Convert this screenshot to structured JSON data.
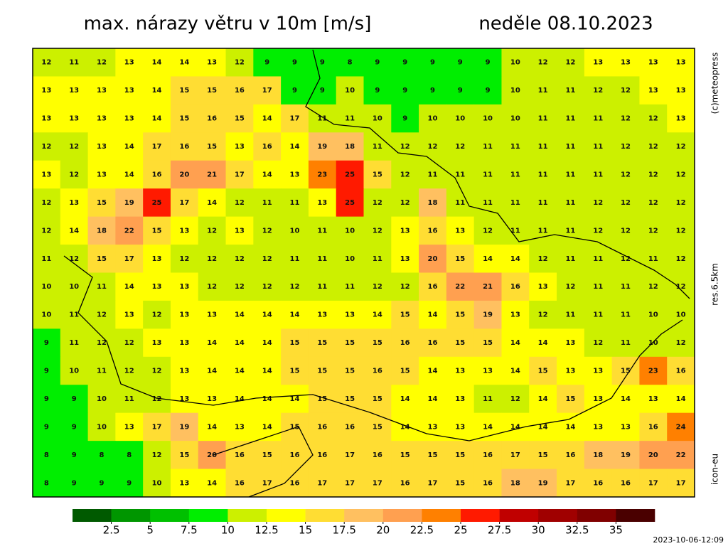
{
  "header": {
    "title": "max. nárazy větru v 10m [m/s]",
    "date": "neděle 08.10.2023"
  },
  "side_labels": [
    "(c)meteopress",
    "res.6.5km",
    "icon-eu"
  ],
  "timestamp": "2023-10-06-12:09",
  "map": {
    "values": [
      [
        12,
        11,
        12,
        13,
        14,
        14,
        13,
        12,
        9,
        9,
        9,
        8,
        9,
        9,
        9,
        9,
        9,
        10,
        12,
        12,
        13,
        13,
        13,
        13
      ],
      [
        13,
        13,
        13,
        13,
        14,
        15,
        15,
        16,
        17,
        9,
        9,
        10,
        9,
        9,
        9,
        9,
        9,
        10,
        11,
        11,
        12,
        12,
        13,
        13
      ],
      [
        13,
        13,
        13,
        13,
        14,
        15,
        16,
        15,
        14,
        17,
        11,
        11,
        10,
        9,
        10,
        10,
        10,
        10,
        11,
        11,
        11,
        12,
        12,
        13
      ],
      [
        12,
        12,
        13,
        14,
        17,
        16,
        15,
        13,
        16,
        14,
        19,
        18,
        11,
        12,
        12,
        12,
        11,
        11,
        11,
        11,
        11,
        12,
        12,
        12
      ],
      [
        13,
        12,
        13,
        14,
        16,
        20,
        21,
        17,
        14,
        13,
        23,
        25,
        15,
        12,
        11,
        11,
        11,
        11,
        11,
        11,
        11,
        12,
        12,
        12
      ],
      [
        12,
        13,
        15,
        19,
        25,
        17,
        14,
        12,
        11,
        11,
        13,
        25,
        12,
        12,
        18,
        11,
        11,
        11,
        11,
        11,
        12,
        12,
        12,
        12
      ],
      [
        12,
        14,
        18,
        22,
        15,
        13,
        12,
        13,
        12,
        10,
        11,
        10,
        12,
        13,
        16,
        13,
        12,
        11,
        11,
        11,
        12,
        12,
        12,
        12
      ],
      [
        11,
        12,
        15,
        17,
        13,
        12,
        12,
        12,
        12,
        11,
        11,
        10,
        11,
        13,
        20,
        15,
        14,
        14,
        12,
        11,
        11,
        12,
        11,
        12
      ],
      [
        10,
        10,
        11,
        14,
        13,
        13,
        12,
        12,
        12,
        12,
        11,
        11,
        12,
        12,
        16,
        22,
        21,
        16,
        13,
        12,
        11,
        11,
        12,
        12
      ],
      [
        10,
        11,
        12,
        13,
        12,
        13,
        13,
        14,
        14,
        14,
        13,
        13,
        14,
        15,
        14,
        15,
        19,
        13,
        12,
        11,
        11,
        11,
        10,
        10
      ],
      [
        9,
        11,
        12,
        12,
        13,
        13,
        14,
        14,
        14,
        15,
        15,
        15,
        15,
        16,
        16,
        15,
        15,
        14,
        14,
        13,
        12,
        11,
        10,
        12
      ],
      [
        9,
        10,
        11,
        12,
        12,
        13,
        14,
        14,
        14,
        15,
        15,
        15,
        16,
        15,
        14,
        13,
        13,
        14,
        15,
        13,
        13,
        15,
        23,
        16
      ],
      [
        9,
        9,
        10,
        11,
        12,
        13,
        13,
        14,
        14,
        14,
        15,
        15,
        15,
        14,
        14,
        13,
        11,
        12,
        14,
        15,
        13,
        14,
        13,
        14
      ],
      [
        9,
        9,
        10,
        13,
        17,
        19,
        14,
        13,
        14,
        15,
        16,
        16,
        15,
        14,
        13,
        13,
        14,
        14,
        14,
        14,
        13,
        13,
        16,
        24
      ],
      [
        8,
        9,
        8,
        8,
        12,
        15,
        20,
        16,
        15,
        16,
        16,
        17,
        16,
        15,
        15,
        15,
        16,
        17,
        15,
        16,
        18,
        19,
        20,
        22
      ],
      [
        8,
        9,
        9,
        9,
        10,
        13,
        14,
        16,
        17,
        16,
        17,
        17,
        17,
        16,
        17,
        15,
        16,
        18,
        19,
        17,
        16,
        16,
        17,
        17
      ]
    ]
  },
  "colorbar": {
    "lim": [
      0,
      37.5
    ],
    "colors": [
      "#005a00",
      "#009600",
      "#00c000",
      "#00ee00",
      "#ccf000",
      "#ffff00",
      "#ffdd33",
      "#ffc060",
      "#ffa050",
      "#ff8000",
      "#ff1a00",
      "#c00000",
      "#a00000",
      "#800000",
      "#4a0000"
    ],
    "ticks": [
      2.5,
      5,
      7.5,
      10,
      12.5,
      15,
      17.5,
      20,
      22.5,
      25,
      27.5,
      30,
      32.5,
      35
    ]
  }
}
